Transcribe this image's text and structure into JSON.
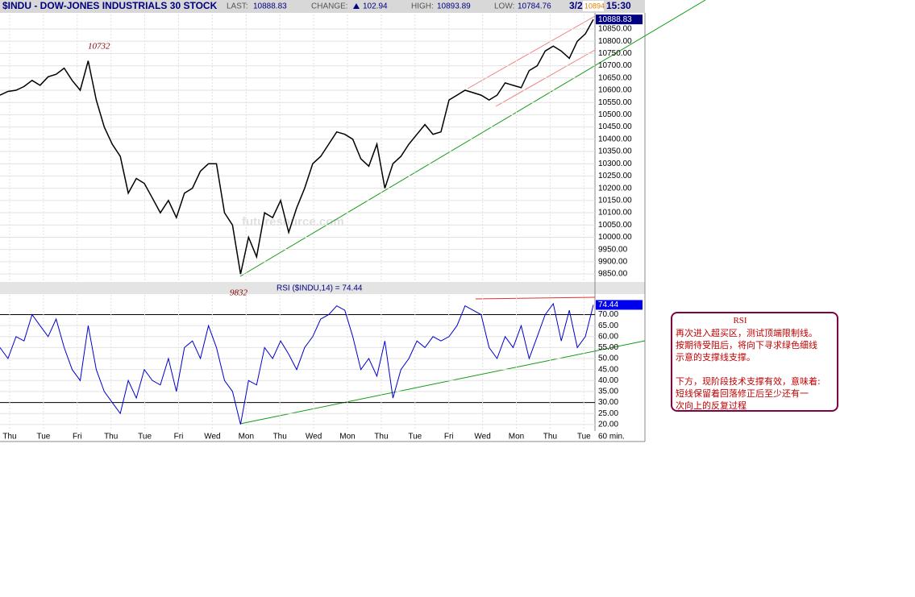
{
  "header": {
    "symbol": "$INDU - DOW-JONES INDUSTRIALS 30 STOCK",
    "last_label": "LAST:",
    "last": "10888.83",
    "change_label": "CHANGE:",
    "change": "102.94",
    "high_label": "HIGH:",
    "high": "10893.89",
    "low_label": "LOW:",
    "low": "10784.76",
    "date": "3/2",
    "flag": "10894",
    "time": "15:30"
  },
  "chart_data": [
    {
      "type": "line",
      "name": "price",
      "color": "#000000",
      "ylim": [
        9824,
        10909
      ],
      "yticks": [
        {
          "value": 9850,
          "label": "9850.00"
        },
        {
          "value": 9900,
          "label": "9900.00"
        },
        {
          "value": 9950,
          "label": "9950.00"
        },
        {
          "value": 10000,
          "label": "10000.00"
        },
        {
          "value": 10050,
          "label": "10050.00"
        },
        {
          "value": 10100,
          "label": "10100.00"
        },
        {
          "value": 10150,
          "label": "10150.00"
        },
        {
          "value": 10200,
          "label": "10200.00"
        },
        {
          "value": 10250,
          "label": "10250.00"
        },
        {
          "value": 10300,
          "label": "10300.00"
        },
        {
          "value": 10350,
          "label": "10350.00"
        },
        {
          "value": 10400,
          "label": "10400.00"
        },
        {
          "value": 10450,
          "label": "10450.00"
        },
        {
          "value": 10500,
          "label": "10500.00"
        },
        {
          "value": 10550,
          "label": "10550.00"
        },
        {
          "value": 10600,
          "label": "10600.00"
        },
        {
          "value": 10650,
          "label": "10650.00"
        },
        {
          "value": 10700,
          "label": "10700.00"
        },
        {
          "value": 10750,
          "label": "10750.00"
        },
        {
          "value": 10800,
          "label": "10800.00"
        },
        {
          "value": 10850,
          "label": "10850.00"
        }
      ],
      "values": [
        10580,
        10595,
        10600,
        10615,
        10640,
        10620,
        10655,
        10665,
        10690,
        10640,
        10600,
        10720,
        10560,
        10450,
        10380,
        10330,
        10180,
        10240,
        10220,
        10160,
        10100,
        10150,
        10080,
        10180,
        10200,
        10270,
        10300,
        10300,
        10100,
        10050,
        9850,
        10000,
        9920,
        10100,
        10080,
        10150,
        10020,
        10120,
        10200,
        10300,
        10330,
        10380,
        10430,
        10420,
        10400,
        10320,
        10290,
        10380,
        10200,
        10300,
        10330,
        10380,
        10420,
        10460,
        10420,
        10430,
        10560,
        10580,
        10600,
        10590,
        10580,
        10560,
        10580,
        10630,
        10620,
        10610,
        10680,
        10700,
        10760,
        10780,
        10760,
        10730,
        10800,
        10830,
        10888.83
      ],
      "last_value": {
        "value": 10888.83,
        "label": "10888.83"
      },
      "annotations": [
        "10732",
        "9832",
        "futuresource.com"
      ]
    },
    {
      "type": "line",
      "name": "rsi",
      "title": "RSI ($INDU,14) = 74.44",
      "color": "#0000cc",
      "ylim": [
        17,
        79
      ],
      "levels": [
        70,
        30
      ],
      "yticks": [
        {
          "value": 20,
          "label": "20.00"
        },
        {
          "value": 25,
          "label": "25.00"
        },
        {
          "value": 30,
          "label": "30.00"
        },
        {
          "value": 35,
          "label": "35.00"
        },
        {
          "value": 40,
          "label": "40.00"
        },
        {
          "value": 45,
          "label": "45.00"
        },
        {
          "value": 50,
          "label": "50.00"
        },
        {
          "value": 55,
          "label": "55.00"
        },
        {
          "value": 60,
          "label": "60.00"
        },
        {
          "value": 65,
          "label": "65.00"
        },
        {
          "value": 70,
          "label": "70.00"
        }
      ],
      "values": [
        55,
        50,
        60,
        58,
        70,
        65,
        60,
        68,
        55,
        45,
        40,
        65,
        45,
        35,
        30,
        25,
        40,
        32,
        45,
        40,
        38,
        50,
        35,
        55,
        58,
        50,
        65,
        55,
        40,
        35,
        20,
        40,
        38,
        55,
        50,
        58,
        52,
        45,
        55,
        60,
        68,
        70,
        74,
        72,
        60,
        45,
        50,
        42,
        58,
        32,
        45,
        50,
        58,
        55,
        60,
        58,
        60,
        65,
        74,
        72,
        70,
        55,
        50,
        60,
        55,
        65,
        50,
        60,
        70,
        75,
        58,
        72,
        55,
        60,
        74.44
      ],
      "last_value": {
        "value": 74.44,
        "label": "74.44"
      }
    }
  ],
  "x_labels": [
    "Thu",
    "Tue",
    "Fri",
    "Thu",
    "Tue",
    "Fri",
    "Wed",
    "Mon",
    "Thu",
    "Wed",
    "Mon",
    "Thu",
    "Tue",
    "Fri",
    "Wed",
    "Mon",
    "Thu",
    "Tue"
  ],
  "interval": "60 min.",
  "note": {
    "title": "RSI",
    "lines": [
      "再次进入超买区，测试顶端限制线。",
      "按期待受阻后，将向下寻求绿色细线",
      "示意的支撑线支撑。",
      "",
      "下方，现阶段技术支撑有效，意味着:",
      "短线保留着回落修正后至少还有一",
      "次向上的反复过程"
    ]
  }
}
